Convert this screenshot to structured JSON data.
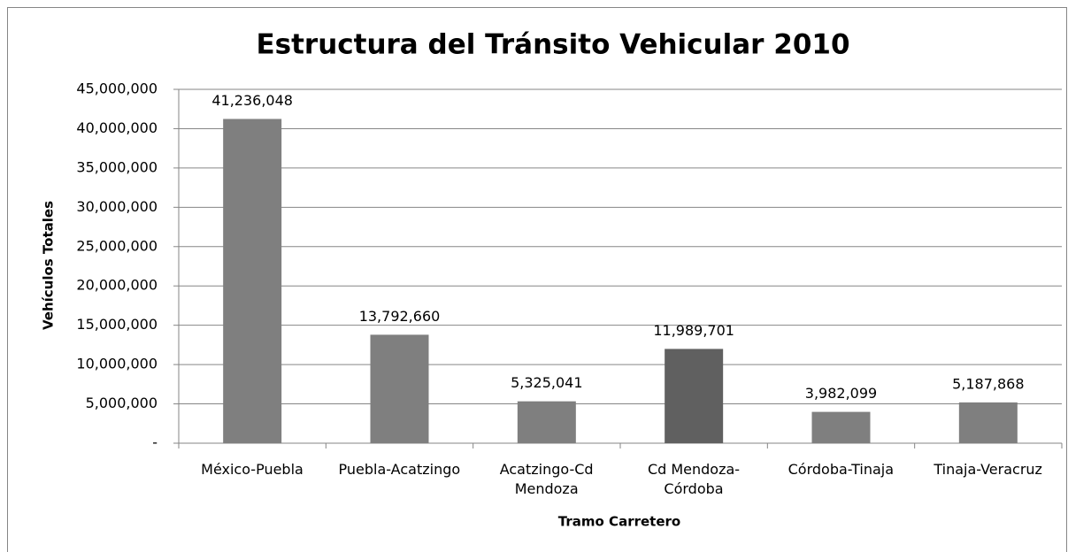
{
  "chart_data": {
    "type": "bar",
    "title": "Estructura del Tránsito Vehicular 2010",
    "x_label": "Tramo Carretero",
    "y_label": "Vehículos Totales",
    "categories": [
      "México-Puebla",
      "Puebla-Acatzingo",
      "Acatzingo-Cd\nMendoza",
      "Cd Mendoza-\nCórdoba",
      "Córdoba-Tinaja",
      "Tinaja-Veracruz"
    ],
    "values": [
      41236048,
      13792660,
      5325041,
      11989701,
      3982099,
      5187868
    ],
    "value_labels": [
      "41,236,048",
      "13,792,660",
      "5,325,041",
      "11,989,701",
      "3,982,099",
      "5,187,868"
    ],
    "colors": [
      "#7f7f7f",
      "#7f7f7f",
      "#7f7f7f",
      "#606060",
      "#7f7f7f",
      "#7f7f7f"
    ],
    "ylim": [
      0,
      45000000
    ],
    "yticks": [
      {
        "value": 0,
        "label": "-"
      },
      {
        "value": 5000000,
        "label": "5,000,000"
      },
      {
        "value": 10000000,
        "label": "10,000,000"
      },
      {
        "value": 15000000,
        "label": "15,000,000"
      },
      {
        "value": 20000000,
        "label": "20,000,000"
      },
      {
        "value": 25000000,
        "label": "25,000,000"
      },
      {
        "value": 30000000,
        "label": "30,000,000"
      },
      {
        "value": 35000000,
        "label": "35,000,000"
      },
      {
        "value": 40000000,
        "label": "40,000,000"
      },
      {
        "value": 45000000,
        "label": "45,000,000"
      }
    ],
    "grid": true
  }
}
